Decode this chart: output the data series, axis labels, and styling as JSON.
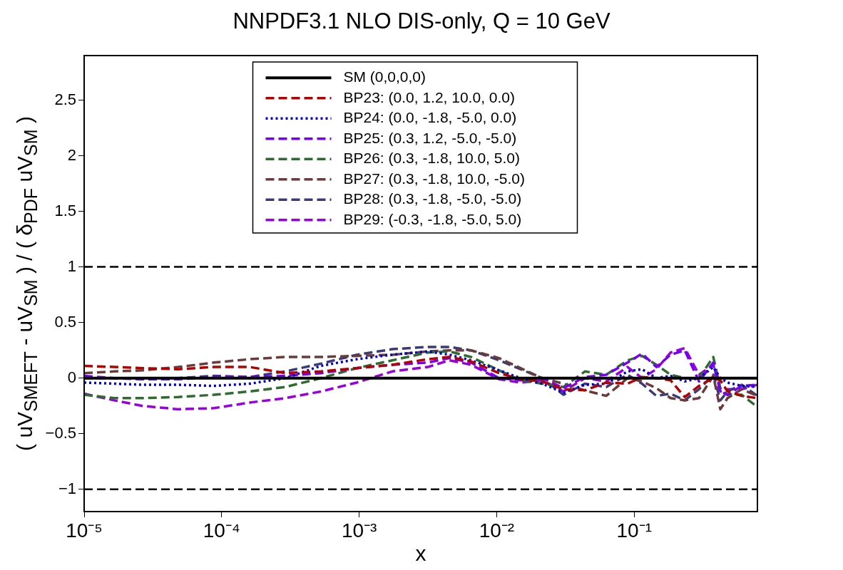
{
  "chart_data": {
    "type": "line",
    "title": "NNPDF3.1 NLO DIS-only, Q = 10 GeV",
    "xlabel": "x",
    "ylabel": "( uV$_{SMEFT}$ - uV$_{SM}$ ) / ( δ$_{PDF}$ uV$_{SM}$ )",
    "log": "x",
    "grid": false,
    "legend": "top",
    "marker": "none",
    "xlim": [
      1e-05,
      0.787
    ],
    "xticks": [
      {
        "value": 1e-05,
        "label": "10⁻⁵"
      },
      {
        "value": 0.0001,
        "label": "10⁻⁴"
      },
      {
        "value": 0.001,
        "label": "10⁻³"
      },
      {
        "value": 0.01,
        "label": "10⁻²"
      },
      {
        "value": 0.1,
        "label": "10⁻¹"
      }
    ],
    "ylim": [
      -1.2,
      2.9
    ],
    "yticks": [
      {
        "value": -1,
        "label": "−1"
      },
      {
        "value": -0.5,
        "label": "−0.5"
      },
      0,
      0.5,
      1,
      1.5,
      2,
      2.5
    ],
    "x": [
      1e-05,
      1.65e-05,
      2.66e-05,
      4.84e-05,
      8.8e-05,
      0.00016,
      0.00029,
      0.000527,
      0.00096,
      0.00174,
      0.00316,
      0.00453,
      0.0065,
      0.0104,
      0.0149,
      0.0214,
      0.0306,
      0.0438,
      0.0626,
      0.0895,
      0.114,
      0.145,
      0.184,
      0.233,
      0.296,
      0.376,
      0.423,
      0.477,
      0.605,
      0.787
    ],
    "ref_lines": [
      {
        "axis": "y",
        "value": 1,
        "color": "#000000",
        "line_style": "dashed"
      },
      {
        "axis": "y",
        "value": -1,
        "color": "#000000",
        "line_style": "dashed"
      }
    ],
    "series": [
      {
        "name": "SM (0,0,0,0)",
        "color": "#000000",
        "line_style": "solid",
        "values": [
          0,
          0,
          0,
          0,
          0,
          0,
          0,
          0,
          0,
          0,
          0,
          0,
          0,
          0,
          0,
          0,
          0,
          0,
          0,
          0,
          0,
          0,
          0,
          0,
          0,
          0,
          0,
          0,
          0,
          0
        ]
      },
      {
        "name": "BP23: (0.0, 1.2, 10.0, 0.0)",
        "color": "#b30000",
        "line_style": "dashed",
        "values": [
          0.11,
          0.1,
          0.09,
          0.08,
          0.1,
          0.1,
          0.045,
          0.06,
          0.09,
          0.12,
          0.17,
          0.19,
          0.15,
          0.045,
          -0.01,
          -0.03,
          -0.1,
          -0.11,
          -0.04,
          -0.05,
          0.01,
          0,
          -0.02,
          -0.17,
          -0.07,
          0,
          -0.02,
          -0.12,
          -0.16,
          -0.18
        ]
      },
      {
        "name": "BP24: (0.0, -1.8, -5.0, 0.0)",
        "color": "#0000cc",
        "line_style": "dotted",
        "values": [
          -0.04,
          -0.05,
          -0.06,
          -0.06,
          -0.07,
          -0.05,
          0,
          0.11,
          0.17,
          0.21,
          0.24,
          0.21,
          0.16,
          0.07,
          0,
          -0.05,
          -0.13,
          -0.06,
          -0.05,
          0.06,
          0.08,
          0,
          0.02,
          -0.03,
          0,
          0.1,
          0,
          -0.04,
          -0.07,
          -0.08
        ]
      },
      {
        "name": "BP25: (0.3, 1.2, -5.0, -5.0)",
        "color": "#7700ee",
        "line_style": "dashed",
        "values": [
          0.02,
          0,
          -0.01,
          -0.01,
          0.01,
          0.01,
          0.02,
          0.045,
          0.09,
          0.12,
          0.14,
          0.18,
          0.14,
          0,
          -0.02,
          0,
          -0.09,
          0.01,
          0.03,
          0.14,
          0.22,
          0.1,
          0.21,
          0.25,
          -0.03,
          0.14,
          -0.12,
          -0.15,
          -0.07,
          -0.06
        ]
      },
      {
        "name": "BP26: (0.3, -1.8, 10.0, 5.0)",
        "color": "#2e6b2e",
        "line_style": "dashed",
        "values": [
          -0.15,
          -0.18,
          -0.18,
          -0.17,
          -0.15,
          -0.12,
          -0.08,
          0,
          0.09,
          0.16,
          0.23,
          0.24,
          0.19,
          0.07,
          -0.02,
          -0.05,
          -0.08,
          0.06,
          0.03,
          0.16,
          0.2,
          0.12,
          0.03,
          0,
          0,
          0.19,
          -0.09,
          -0.15,
          -0.15,
          -0.26
        ]
      },
      {
        "name": "BP27: (0.3, -1.8, 10.0, -5.0)",
        "color": "#6b3a3a",
        "line_style": "dashed",
        "values": [
          0.045,
          0.06,
          0.07,
          0.1,
          0.14,
          0.17,
          0.19,
          0.19,
          0.2,
          0.21,
          0.24,
          0.25,
          0.25,
          0.18,
          0.09,
          0,
          -0.05,
          -0.11,
          -0.16,
          0,
          -0.03,
          -0.09,
          -0.18,
          -0.2,
          -0.18,
          0.02,
          -0.28,
          -0.18,
          -0.1,
          -0.16
        ]
      },
      {
        "name": "BP28: (0.3, -1.8, -5.0, -5.0)",
        "color": "#3a3a78",
        "line_style": "dashed",
        "values": [
          0,
          0,
          -0.01,
          0,
          0.02,
          0.01,
          0.06,
          0.13,
          0.21,
          0.26,
          0.28,
          0.28,
          0.25,
          0.16,
          0.08,
          0,
          -0.15,
          -0.05,
          -0.08,
          0.03,
          -0.05,
          -0.16,
          -0.14,
          -0.2,
          -0.1,
          0.03,
          -0.2,
          -0.12,
          -0.06,
          -0.16
        ]
      },
      {
        "name": "BP29: (-0.3, -1.8, -5.0, 5.0)",
        "color": "#9900dd",
        "line_style": "dashed",
        "values": [
          -0.14,
          -0.2,
          -0.25,
          -0.28,
          -0.27,
          -0.22,
          -0.18,
          -0.12,
          -0.04,
          0.06,
          0.1,
          0.16,
          0.12,
          -0.01,
          -0.04,
          -0.02,
          -0.12,
          0,
          -0.03,
          0.1,
          0,
          0.08,
          0.23,
          0.27,
          0.03,
          0.12,
          -0.12,
          -0.1,
          -0.1,
          -0.06
        ]
      }
    ]
  }
}
